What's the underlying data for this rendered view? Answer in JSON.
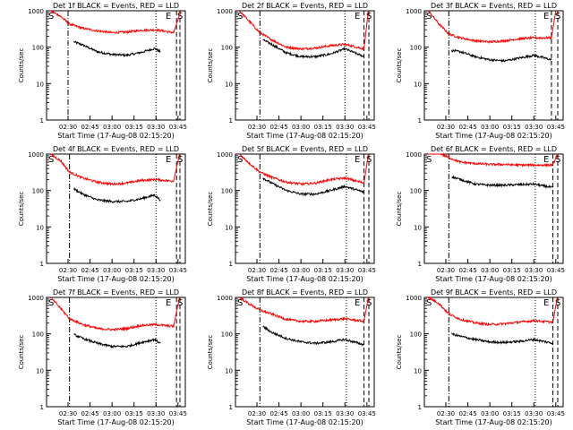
{
  "figure": {
    "title_template": "Det {n} BLACK = Events, RED = LLD",
    "ylabel": "Counts/sec",
    "xlabel": "Start Time (17-Aug-08 02:15:20)",
    "xticks": [
      "02:30",
      "02:45",
      "03:00",
      "03:15",
      "03:30",
      "03:45"
    ],
    "yticks": [
      "1",
      "10",
      "100",
      "1000"
    ],
    "corner_labels": {
      "start": "S",
      "end": "E",
      "stop": "S"
    },
    "colors": {
      "events": "#000000",
      "lld": "#ff0000",
      "axes": "#000000"
    }
  },
  "chart_data": [
    {
      "type": "line",
      "title": "Det 1f BLACK = Events, RED = LLD",
      "det": "1f",
      "ylog": true,
      "ylim": [
        1,
        1000
      ],
      "x_time_labels": [
        "02:30",
        "02:45",
        "03:00",
        "03:15",
        "03:30",
        "03:45"
      ],
      "series": [
        {
          "name": "BLACK = Events",
          "color": "#000000",
          "t": [
            "02:34",
            "02:40",
            "02:50",
            "03:00",
            "03:10",
            "03:20",
            "03:29",
            "03:33"
          ],
          "y": [
            140,
            115,
            75,
            63,
            60,
            72,
            92,
            75
          ]
        },
        {
          "name": "RED = LLD",
          "color": "#ff0000",
          "t": [
            "02:18",
            "02:25",
            "02:31",
            "02:40",
            "02:50",
            "03:00",
            "03:10",
            "03:20",
            "03:30",
            "03:42",
            "03:47"
          ],
          "y": [
            1000,
            700,
            430,
            330,
            280,
            250,
            260,
            290,
            300,
            250,
            1000
          ]
        }
      ],
      "vlines": [
        {
          "t": "02:30",
          "style": "dashdot"
        },
        {
          "t": "03:30",
          "style": "dotted"
        },
        {
          "t": "03:44",
          "style": "dashed"
        }
      ]
    },
    {
      "type": "line",
      "title": "Det 2f BLACK = Events, RED = LLD",
      "det": "2f",
      "ylog": true,
      "ylim": [
        1,
        1000
      ],
      "series": [
        {
          "name": "BLACK = Events",
          "color": "#000000",
          "t": [
            "02:34",
            "02:40",
            "02:50",
            "03:00",
            "03:10",
            "03:20",
            "03:30",
            "03:43"
          ],
          "y": [
            160,
            120,
            70,
            55,
            55,
            65,
            90,
            55
          ]
        },
        {
          "name": "RED = LLD",
          "color": "#ff0000",
          "t": [
            "02:18",
            "02:25",
            "02:32",
            "02:40",
            "02:50",
            "03:00",
            "03:10",
            "03:20",
            "03:30",
            "03:43",
            "03:46"
          ],
          "y": [
            1000,
            500,
            250,
            160,
            100,
            90,
            95,
            110,
            120,
            90,
            1000
          ]
        }
      ],
      "vlines": [
        {
          "t": "02:32",
          "style": "dashdot"
        },
        {
          "t": "03:30",
          "style": "dotted"
        },
        {
          "t": "03:43",
          "style": "dashed"
        }
      ]
    },
    {
      "type": "line",
      "title": "Det 3f BLACK = Events, RED = LLD",
      "det": "3f",
      "ylog": true,
      "ylim": [
        1,
        1000
      ],
      "series": [
        {
          "name": "BLACK = Events",
          "color": "#000000",
          "t": [
            "02:34",
            "02:40",
            "02:50",
            "03:00",
            "03:10",
            "03:20",
            "03:30",
            "03:42"
          ],
          "y": [
            80,
            75,
            55,
            45,
            42,
            50,
            60,
            45
          ]
        },
        {
          "name": "RED = LLD",
          "color": "#ff0000",
          "t": [
            "02:18",
            "02:25",
            "02:32",
            "02:40",
            "02:50",
            "03:00",
            "03:10",
            "03:20",
            "03:30",
            "03:42",
            "03:45"
          ],
          "y": [
            1000,
            450,
            230,
            180,
            150,
            140,
            150,
            170,
            180,
            180,
            1000
          ]
        }
      ],
      "vlines": [
        {
          "t": "02:32",
          "style": "dashdot"
        },
        {
          "t": "03:31",
          "style": "dotted"
        },
        {
          "t": "03:42",
          "style": "dashed"
        }
      ]
    },
    {
      "type": "line",
      "title": "Det 4f BLACK = Events, RED = LLD",
      "det": "4f",
      "ylog": true,
      "ylim": [
        1,
        1000
      ],
      "series": [
        {
          "name": "BLACK = Events",
          "color": "#000000",
          "t": [
            "02:34",
            "02:40",
            "02:50",
            "03:00",
            "03:10",
            "03:20",
            "03:29",
            "03:33"
          ],
          "y": [
            110,
            80,
            55,
            50,
            50,
            60,
            75,
            55
          ]
        },
        {
          "name": "RED = LLD",
          "color": "#ff0000",
          "t": [
            "02:18",
            "02:25",
            "02:31",
            "02:40",
            "02:50",
            "03:00",
            "03:10",
            "03:20",
            "03:30",
            "03:42",
            "03:46"
          ],
          "y": [
            1000,
            650,
            320,
            220,
            170,
            150,
            160,
            190,
            200,
            180,
            1000
          ]
        }
      ],
      "vlines": [
        {
          "t": "02:31",
          "style": "dashdot"
        },
        {
          "t": "03:30",
          "style": "dotted"
        },
        {
          "t": "03:44",
          "style": "dashed"
        }
      ]
    },
    {
      "type": "line",
      "title": "Det 5f BLACK = Events, RED = LLD",
      "det": "5f",
      "ylog": true,
      "ylim": [
        1,
        1000
      ],
      "series": [
        {
          "name": "BLACK = Events",
          "color": "#000000",
          "t": [
            "02:34",
            "02:40",
            "02:50",
            "03:00",
            "03:10",
            "03:20",
            "03:30",
            "03:43"
          ],
          "y": [
            220,
            160,
            100,
            80,
            80,
            100,
            130,
            90
          ]
        },
        {
          "name": "RED = LLD",
          "color": "#ff0000",
          "t": [
            "02:18",
            "02:25",
            "02:32",
            "02:40",
            "02:50",
            "03:00",
            "03:10",
            "03:20",
            "03:30",
            "03:43",
            "03:46"
          ],
          "y": [
            1000,
            550,
            320,
            230,
            170,
            150,
            160,
            200,
            220,
            160,
            1000
          ]
        }
      ],
      "vlines": [
        {
          "t": "02:32",
          "style": "dashdot"
        },
        {
          "t": "03:31",
          "style": "dotted"
        },
        {
          "t": "03:43",
          "style": "dashed"
        }
      ]
    },
    {
      "type": "line",
      "title": "Det 6f BLACK = Events, RED = LLD",
      "det": "6f",
      "ylog": true,
      "ylim": [
        1,
        1000
      ],
      "series": [
        {
          "name": "BLACK = Events",
          "color": "#000000",
          "t": [
            "02:34",
            "02:40",
            "02:50",
            "03:00",
            "03:10",
            "03:20",
            "03:30",
            "03:43"
          ],
          "y": [
            240,
            200,
            150,
            140,
            140,
            145,
            150,
            120
          ]
        },
        {
          "name": "RED = LLD",
          "color": "#ff0000",
          "t": [
            "02:18",
            "02:25",
            "02:32",
            "02:40",
            "02:50",
            "03:00",
            "03:10",
            "03:20",
            "03:30",
            "03:43",
            "03:46"
          ],
          "y": [
            1000,
            1100,
            800,
            600,
            550,
            520,
            520,
            500,
            500,
            500,
            1000
          ]
        }
      ],
      "vlines": [
        {
          "t": "02:32",
          "style": "dashdot"
        },
        {
          "t": "03:31",
          "style": "dotted"
        },
        {
          "t": "03:43",
          "style": "dashed"
        }
      ]
    },
    {
      "type": "line",
      "title": "Det 7f BLACK = Events, RED = LLD",
      "det": "7f",
      "ylog": true,
      "ylim": [
        1,
        1000
      ],
      "series": [
        {
          "name": "BLACK = Events",
          "color": "#000000",
          "t": [
            "02:34",
            "02:40",
            "02:50",
            "03:00",
            "03:10",
            "03:20",
            "03:29",
            "03:33"
          ],
          "y": [
            95,
            75,
            55,
            45,
            45,
            58,
            70,
            55
          ]
        },
        {
          "name": "RED = LLD",
          "color": "#ff0000",
          "t": [
            "02:18",
            "02:25",
            "02:31",
            "02:40",
            "02:50",
            "03:00",
            "03:10",
            "03:20",
            "03:30",
            "03:42",
            "03:46"
          ],
          "y": [
            1000,
            500,
            260,
            180,
            140,
            130,
            140,
            170,
            180,
            160,
            1000
          ]
        }
      ],
      "vlines": [
        {
          "t": "02:31",
          "style": "dashdot"
        },
        {
          "t": "03:30",
          "style": "dotted"
        },
        {
          "t": "03:44",
          "style": "dashed"
        }
      ]
    },
    {
      "type": "line",
      "title": "Det 8f BLACK = Events, RED = LLD",
      "det": "8f",
      "ylog": true,
      "ylim": [
        1,
        1000
      ],
      "series": [
        {
          "name": "BLACK = Events",
          "color": "#000000",
          "t": [
            "02:34",
            "02:40",
            "02:50",
            "03:00",
            "03:10",
            "03:20",
            "03:30",
            "03:43"
          ],
          "y": [
            160,
            110,
            75,
            60,
            55,
            60,
            70,
            50
          ]
        },
        {
          "name": "RED = LLD",
          "color": "#ff0000",
          "t": [
            "02:18",
            "02:25",
            "02:32",
            "02:40",
            "02:50",
            "03:00",
            "03:10",
            "03:20",
            "03:30",
            "03:43",
            "03:46"
          ],
          "y": [
            1000,
            650,
            450,
            350,
            250,
            220,
            220,
            240,
            260,
            220,
            1000
          ]
        }
      ],
      "vlines": [
        {
          "t": "02:32",
          "style": "dashdot"
        },
        {
          "t": "03:31",
          "style": "dotted"
        },
        {
          "t": "03:43",
          "style": "dashed"
        }
      ]
    },
    {
      "type": "line",
      "title": "Det 9f BLACK = Events, RED = LLD",
      "det": "9f",
      "ylog": true,
      "ylim": [
        1,
        1000
      ],
      "series": [
        {
          "name": "BLACK = Events",
          "color": "#000000",
          "t": [
            "02:34",
            "02:40",
            "02:50",
            "03:00",
            "03:10",
            "03:20",
            "03:30",
            "03:43"
          ],
          "y": [
            100,
            85,
            70,
            60,
            58,
            62,
            70,
            55
          ]
        },
        {
          "name": "RED = LLD",
          "color": "#ff0000",
          "t": [
            "02:18",
            "02:25",
            "02:32",
            "02:40",
            "02:50",
            "03:00",
            "03:10",
            "03:20",
            "03:30",
            "03:43",
            "03:46"
          ],
          "y": [
            1000,
            700,
            350,
            250,
            200,
            180,
            190,
            210,
            230,
            210,
            1000
          ]
        }
      ],
      "vlines": [
        {
          "t": "02:32",
          "style": "dashdot"
        },
        {
          "t": "03:31",
          "style": "dotted"
        },
        {
          "t": "03:43",
          "style": "dashed"
        }
      ]
    }
  ]
}
